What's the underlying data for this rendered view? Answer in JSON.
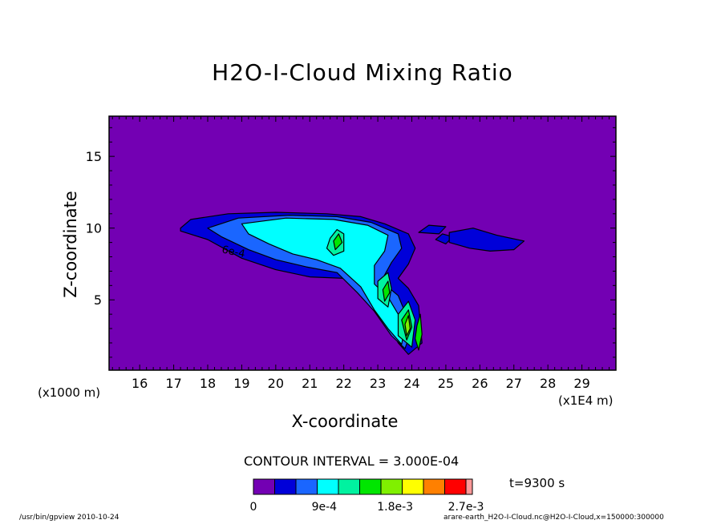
{
  "chart_data": {
    "type": "contour",
    "title": "H2O-I-Cloud Mixing Ratio",
    "xlabel": "X-coordinate",
    "ylabel": "Z-coordinate",
    "x_unit_left": "(x1000 m)",
    "x_unit_right": "(x1E4 m)",
    "xlim": [
      15.1,
      30.0
    ],
    "ylim": [
      0.1,
      17.8
    ],
    "xticks": [
      "16",
      "17",
      "18",
      "19",
      "20",
      "21",
      "22",
      "23",
      "24",
      "25",
      "26",
      "27",
      "28",
      "29"
    ],
    "yticks": [
      "5",
      "10",
      "15"
    ],
    "contour_interval_label": "CONTOUR INTERVAL = 3.000E-04",
    "time_label": "t=9300 s",
    "contour_labels": [
      "6e-4"
    ],
    "colorbar": {
      "levels": [
        0,
        0.0003,
        0.0006,
        0.0009,
        0.0012,
        0.0015,
        0.0018,
        0.0021,
        0.0024,
        0.0027,
        0.003
      ],
      "colors": [
        "#7300b3",
        "#0000d9",
        "#1a66ff",
        "#00ffff",
        "#00f2a0",
        "#00e600",
        "#80f000",
        "#ffff00",
        "#ff8000",
        "#ff0000",
        "#ff9999"
      ],
      "tick_labels": [
        "0",
        "9e-4",
        "1.8e-3",
        "2.7e-3"
      ],
      "tick_values": [
        0,
        0.0009,
        0.0018,
        0.0027
      ]
    },
    "background_color": "#7300b3",
    "cloud_regions": [
      {
        "level": 0.0003,
        "outline": [
          [
            17.2,
            10.0
          ],
          [
            17.5,
            10.6
          ],
          [
            18.6,
            11.0
          ],
          [
            20.0,
            11.1
          ],
          [
            21.5,
            11.0
          ],
          [
            22.5,
            10.8
          ],
          [
            23.2,
            10.3
          ],
          [
            23.9,
            9.6
          ],
          [
            24.1,
            8.6
          ],
          [
            23.9,
            7.5
          ],
          [
            23.6,
            6.5
          ],
          [
            23.9,
            5.8
          ],
          [
            24.2,
            4.6
          ],
          [
            24.3,
            2.0
          ],
          [
            23.9,
            1.2
          ],
          [
            23.6,
            2.0
          ],
          [
            23.4,
            3.0
          ],
          [
            23.0,
            4.3
          ],
          [
            22.6,
            5.5
          ],
          [
            22.0,
            6.5
          ],
          [
            21.0,
            6.6
          ],
          [
            20.0,
            7.1
          ],
          [
            19.0,
            7.9
          ],
          [
            18.0,
            9.2
          ],
          [
            17.2,
            9.8
          ]
        ]
      },
      {
        "level": 0.0003,
        "outline": [
          [
            24.2,
            9.7
          ],
          [
            24.5,
            10.2
          ],
          [
            25.0,
            10.1
          ],
          [
            24.8,
            9.6
          ]
        ]
      },
      {
        "level": 0.0003,
        "outline": [
          [
            24.7,
            9.2
          ],
          [
            24.9,
            9.6
          ],
          [
            25.2,
            9.4
          ],
          [
            25.0,
            8.9
          ]
        ]
      },
      {
        "level": 0.0003,
        "outline": [
          [
            25.1,
            9.7
          ],
          [
            25.8,
            10.0
          ],
          [
            26.5,
            9.5
          ],
          [
            27.3,
            9.1
          ],
          [
            27.0,
            8.5
          ],
          [
            26.3,
            8.4
          ],
          [
            25.7,
            8.6
          ],
          [
            25.1,
            9.0
          ]
        ]
      },
      {
        "level": 0.0006,
        "outline": [
          [
            18.0,
            10.0
          ],
          [
            18.9,
            10.7
          ],
          [
            20.4,
            10.9
          ],
          [
            21.8,
            10.8
          ],
          [
            22.8,
            10.4
          ],
          [
            23.6,
            9.6
          ],
          [
            23.7,
            8.6
          ],
          [
            23.4,
            7.6
          ],
          [
            23.1,
            6.3
          ],
          [
            23.6,
            5.3
          ],
          [
            24.0,
            3.0
          ],
          [
            23.8,
            1.6
          ],
          [
            23.4,
            2.5
          ],
          [
            22.9,
            4.2
          ],
          [
            22.4,
            5.5
          ],
          [
            21.8,
            6.9
          ],
          [
            20.9,
            7.3
          ],
          [
            20.0,
            7.8
          ],
          [
            19.2,
            8.5
          ],
          [
            18.4,
            9.4
          ]
        ]
      },
      {
        "level": 0.0009,
        "outline": [
          [
            19.0,
            10.3
          ],
          [
            20.3,
            10.7
          ],
          [
            21.7,
            10.6
          ],
          [
            22.7,
            10.2
          ],
          [
            23.3,
            9.5
          ],
          [
            23.2,
            8.4
          ],
          [
            22.9,
            7.4
          ],
          [
            22.9,
            6.1
          ],
          [
            23.3,
            5.2
          ],
          [
            23.8,
            3.2
          ],
          [
            23.7,
            1.9
          ],
          [
            23.3,
            3.0
          ],
          [
            22.9,
            4.3
          ],
          [
            22.5,
            5.9
          ],
          [
            21.9,
            7.2
          ],
          [
            21.2,
            7.8
          ],
          [
            20.5,
            8.2
          ],
          [
            19.8,
            8.9
          ],
          [
            19.2,
            9.6
          ]
        ]
      },
      {
        "level": 0.0012,
        "outline": [
          [
            21.6,
            9.3
          ],
          [
            21.8,
            9.9
          ],
          [
            22.0,
            9.6
          ],
          [
            22.0,
            8.4
          ],
          [
            21.7,
            8.1
          ],
          [
            21.5,
            8.6
          ]
        ]
      },
      {
        "level": 0.0012,
        "outline": [
          [
            23.0,
            6.3
          ],
          [
            23.3,
            6.9
          ],
          [
            23.4,
            5.8
          ],
          [
            23.3,
            4.5
          ],
          [
            23.0,
            5.1
          ]
        ]
      },
      {
        "level": 0.0012,
        "outline": [
          [
            23.6,
            4.0
          ],
          [
            23.9,
            4.9
          ],
          [
            24.1,
            3.6
          ],
          [
            24.0,
            1.7
          ],
          [
            23.6,
            2.5
          ]
        ]
      },
      {
        "level": 0.0015,
        "outline": [
          [
            21.7,
            9.1
          ],
          [
            21.85,
            9.6
          ],
          [
            21.95,
            9.0
          ],
          [
            21.75,
            8.5
          ]
        ]
      },
      {
        "level": 0.0015,
        "outline": [
          [
            23.15,
            5.7
          ],
          [
            23.3,
            6.3
          ],
          [
            23.35,
            5.5
          ],
          [
            23.2,
            4.9
          ]
        ]
      },
      {
        "level": 0.0015,
        "outline": [
          [
            23.7,
            3.6
          ],
          [
            23.9,
            4.3
          ],
          [
            24.0,
            3.1
          ],
          [
            23.85,
            2.2
          ]
        ]
      },
      {
        "level": 0.0015,
        "outline": [
          [
            24.15,
            3.2
          ],
          [
            24.25,
            4.0
          ],
          [
            24.3,
            2.6
          ],
          [
            24.2,
            1.5
          ],
          [
            24.1,
            2.3
          ]
        ]
      },
      {
        "level": 0.0018,
        "outline": [
          [
            23.8,
            3.3
          ],
          [
            23.9,
            3.9
          ],
          [
            23.95,
            3.0
          ],
          [
            23.85,
            2.5
          ]
        ]
      }
    ]
  },
  "footer": {
    "left": "/usr/bin/gpview   2010-10-24",
    "right": "arare-earth_H2O-I-Cloud.nc@H2O-I-Cloud,x=150000:300000"
  }
}
